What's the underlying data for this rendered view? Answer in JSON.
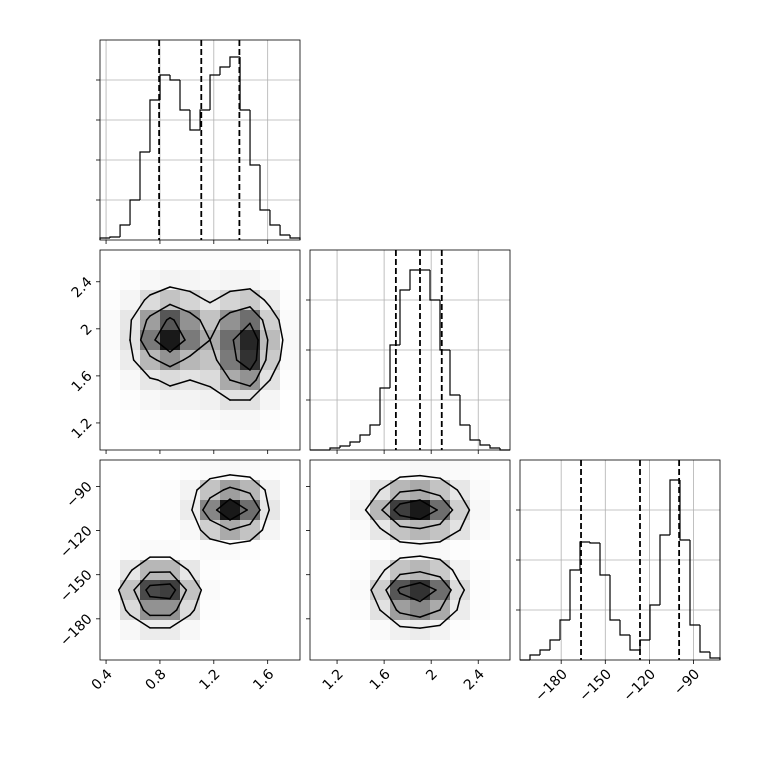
{
  "chart_data": [
    {
      "type": "histogram",
      "xlim": [
        0.355,
        1.84
      ],
      "ylim": [
        0,
        200
      ],
      "grid": true,
      "xticks": [
        0.4,
        0.8,
        1.2,
        1.6
      ],
      "yticks": [
        40,
        80,
        120,
        160
      ],
      "show_xlabels": false,
      "show_ylabels": false,
      "bins": [
        0.355,
        0.429,
        0.504,
        0.578,
        0.652,
        0.726,
        0.801,
        0.875,
        0.949,
        1.023,
        1.098,
        1.172,
        1.246,
        1.32,
        1.395,
        1.469,
        1.543,
        1.617,
        1.692,
        1.766,
        1.84
      ],
      "counts": [
        2,
        3,
        15,
        40,
        88,
        140,
        165,
        160,
        130,
        110,
        130,
        165,
        173,
        183,
        130,
        75,
        30,
        15,
        5,
        2
      ],
      "quantiles": [
        0.794,
        1.107,
        1.39
      ]
    },
    {
      "type": "hist2d",
      "xlim": [
        0.355,
        1.84
      ],
      "ylim": [
        0.97,
        2.67
      ],
      "xticks": [
        0.4,
        0.8,
        1.2,
        1.6
      ],
      "yticks": [
        1.2,
        1.6,
        2.0,
        2.4
      ],
      "show_xlabels": false,
      "show_ylabels": true,
      "levels": [
        12,
        35,
        65
      ],
      "density": [
        [
          0,
          0,
          0,
          1,
          1,
          1,
          1,
          1,
          0,
          0
        ],
        [
          0,
          1,
          3,
          5,
          4,
          3,
          4,
          4,
          2,
          0
        ],
        [
          1,
          4,
          15,
          25,
          18,
          10,
          18,
          22,
          8,
          1
        ],
        [
          2,
          10,
          40,
          70,
          45,
          25,
          45,
          60,
          20,
          2
        ],
        [
          2,
          12,
          55,
          95,
          55,
          35,
          60,
          90,
          28,
          3
        ],
        [
          1,
          8,
          30,
          45,
          30,
          25,
          55,
          85,
          22,
          2
        ],
        [
          0,
          3,
          10,
          15,
          12,
          15,
          35,
          45,
          12,
          1
        ],
        [
          0,
          1,
          3,
          5,
          5,
          6,
          12,
          12,
          4,
          0
        ],
        [
          0,
          0,
          1,
          1,
          1,
          2,
          3,
          3,
          1,
          0
        ],
        [
          0,
          0,
          0,
          0,
          0,
          0,
          0,
          0,
          0,
          0
        ]
      ]
    },
    {
      "type": "histogram",
      "xlim": [
        0.97,
        2.67
      ],
      "ylim": [
        0,
        200
      ],
      "grid": true,
      "xticks": [
        1.2,
        1.6,
        2.0,
        2.4
      ],
      "yticks": [
        50,
        100,
        150
      ],
      "show_xlabels": false,
      "show_ylabels": false,
      "bins": [
        0.97,
        1.055,
        1.14,
        1.225,
        1.31,
        1.395,
        1.48,
        1.565,
        1.65,
        1.735,
        1.82,
        1.905,
        1.99,
        2.075,
        2.16,
        2.245,
        2.33,
        2.415,
        2.5,
        2.585,
        2.67
      ],
      "counts": [
        0,
        0,
        2,
        4,
        8,
        15,
        25,
        62,
        105,
        160,
        180,
        180,
        150,
        100,
        55,
        25,
        10,
        5,
        2,
        0
      ],
      "quantiles": [
        1.7,
        1.905,
        2.09
      ]
    },
    {
      "type": "hist2d",
      "xlim": [
        0.355,
        1.84
      ],
      "ylim": [
        -208,
        -72
      ],
      "xticks": [
        0.4,
        0.8,
        1.2,
        1.6
      ],
      "yticks": [
        {
          "value": -180,
          "label": "−180"
        },
        {
          "value": -150,
          "label": "−150"
        },
        {
          "value": -120,
          "label": "−120"
        },
        {
          "value": -90,
          "label": "−90"
        }
      ],
      "show_xlabels": true,
      "show_ylabels": true,
      "levels": [
        12,
        35,
        65
      ],
      "density": [
        [
          0,
          0,
          0,
          0,
          1,
          2,
          3,
          2,
          1,
          0
        ],
        [
          0,
          0,
          0,
          1,
          5,
          25,
          40,
          30,
          6,
          0
        ],
        [
          0,
          0,
          0,
          1,
          8,
          50,
          95,
          60,
          10,
          0
        ],
        [
          0,
          0,
          0,
          0,
          3,
          20,
          35,
          25,
          4,
          0
        ],
        [
          0,
          1,
          2,
          2,
          1,
          2,
          2,
          1,
          0,
          0
        ],
        [
          1,
          10,
          30,
          30,
          10,
          1,
          0,
          0,
          0,
          0
        ],
        [
          2,
          25,
          75,
          80,
          25,
          2,
          0,
          0,
          0,
          0
        ],
        [
          1,
          15,
          45,
          45,
          15,
          1,
          0,
          0,
          0,
          0
        ],
        [
          0,
          3,
          8,
          8,
          3,
          0,
          0,
          0,
          0,
          0
        ],
        [
          0,
          0,
          0,
          0,
          0,
          0,
          0,
          0,
          0,
          0
        ]
      ]
    },
    {
      "type": "hist2d",
      "xlim": [
        0.97,
        2.67
      ],
      "ylim": [
        -208,
        -72
      ],
      "xticks": [
        1.2,
        1.6,
        2.0,
        2.4
      ],
      "yticks": [
        -180,
        -150,
        -120,
        -90
      ],
      "show_xlabels": true,
      "show_ylabels": false,
      "levels": [
        12,
        35,
        65
      ],
      "density": [
        [
          0,
          0,
          0,
          1,
          2,
          3,
          3,
          2,
          1,
          0
        ],
        [
          0,
          0,
          3,
          12,
          30,
          35,
          25,
          10,
          2,
          0
        ],
        [
          0,
          0,
          5,
          30,
          80,
          95,
          60,
          20,
          3,
          0
        ],
        [
          0,
          0,
          2,
          10,
          25,
          30,
          25,
          12,
          2,
          0
        ],
        [
          0,
          0,
          0,
          1,
          3,
          4,
          3,
          1,
          0,
          0
        ],
        [
          0,
          0,
          1,
          8,
          25,
          30,
          22,
          6,
          1,
          0
        ],
        [
          0,
          0,
          2,
          20,
          70,
          85,
          60,
          15,
          1,
          0
        ],
        [
          0,
          0,
          1,
          12,
          40,
          50,
          35,
          8,
          1,
          0
        ],
        [
          0,
          0,
          0,
          2,
          6,
          8,
          5,
          1,
          0,
          0
        ],
        [
          0,
          0,
          0,
          0,
          0,
          0,
          0,
          0,
          0,
          0
        ]
      ]
    },
    {
      "type": "histogram",
      "xlim": [
        -208,
        -72
      ],
      "ylim": [
        0,
        200
      ],
      "grid": true,
      "xticks": [
        {
          "value": -180,
          "label": "−180"
        },
        {
          "value": -150,
          "label": "−150"
        },
        {
          "value": -120,
          "label": "−120"
        },
        {
          "value": -90,
          "label": "−90"
        }
      ],
      "yticks": [
        50,
        100,
        150
      ],
      "show_xlabels": true,
      "show_ylabels": false,
      "bins": [
        -208,
        -201.2,
        -194.4,
        -187.6,
        -180.8,
        -174,
        -167.2,
        -160.4,
        -153.6,
        -146.8,
        -140,
        -133.2,
        -126.4,
        -119.6,
        -112.8,
        -106,
        -99.2,
        -92.4,
        -85.6,
        -78.8,
        -72
      ],
      "counts": [
        0,
        5,
        10,
        20,
        40,
        90,
        118,
        117,
        85,
        40,
        25,
        10,
        20,
        55,
        125,
        180,
        120,
        35,
        8,
        2
      ],
      "quantiles": [
        -166.5,
        -126.4,
        -99.8
      ]
    }
  ]
}
